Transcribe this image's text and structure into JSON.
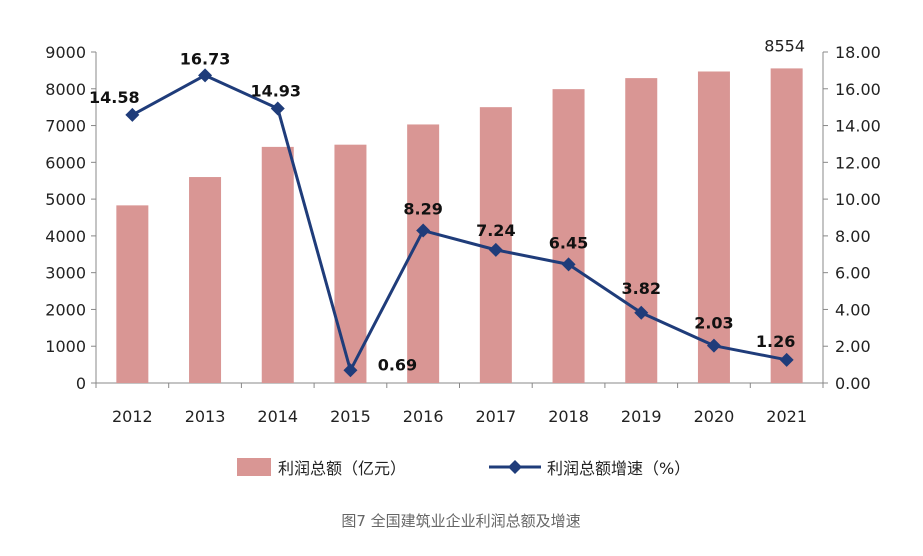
{
  "chart_data": {
    "type": "bar+line",
    "categories": [
      "2012",
      "2013",
      "2014",
      "2015",
      "2016",
      "2017",
      "2018",
      "2019",
      "2020",
      "2021"
    ],
    "series": [
      {
        "name": "利润总额（亿元）",
        "type": "bar",
        "axis": "left",
        "color": "#d99694",
        "values": [
          4830,
          5600,
          6420,
          6480,
          7030,
          7500,
          7990,
          8290,
          8470,
          8554
        ],
        "data_labels": [
          null,
          null,
          null,
          null,
          null,
          null,
          null,
          null,
          null,
          "8554"
        ]
      },
      {
        "name": "利润总额增速（%）",
        "type": "line",
        "axis": "right",
        "color": "#1f3c7a",
        "marker": "diamond",
        "values": [
          14.58,
          16.73,
          14.93,
          0.69,
          8.29,
          7.24,
          6.45,
          3.82,
          2.03,
          1.26
        ],
        "data_labels": [
          "14.58",
          "16.73",
          "14.93",
          "0.69",
          "8.29",
          "7.24",
          "6.45",
          "3.82",
          "2.03",
          "1.26"
        ]
      }
    ],
    "y_left": {
      "min": 0,
      "max": 9000,
      "ticks": [
        "0",
        "1000",
        "2000",
        "3000",
        "4000",
        "5000",
        "6000",
        "7000",
        "8000",
        "9000"
      ]
    },
    "y_right": {
      "min": 0,
      "max": 18,
      "ticks": [
        "0.00",
        "2.00",
        "4.00",
        "6.00",
        "8.00",
        "10.00",
        "12.00",
        "14.00",
        "16.00",
        "18.00"
      ]
    },
    "grid": false,
    "legend": "bottom"
  },
  "legend": {
    "bar_label": "利润总额（亿元）",
    "line_label": "利润总额增速（%）"
  },
  "caption": "图7 全国建筑业企业利润总额及增速"
}
